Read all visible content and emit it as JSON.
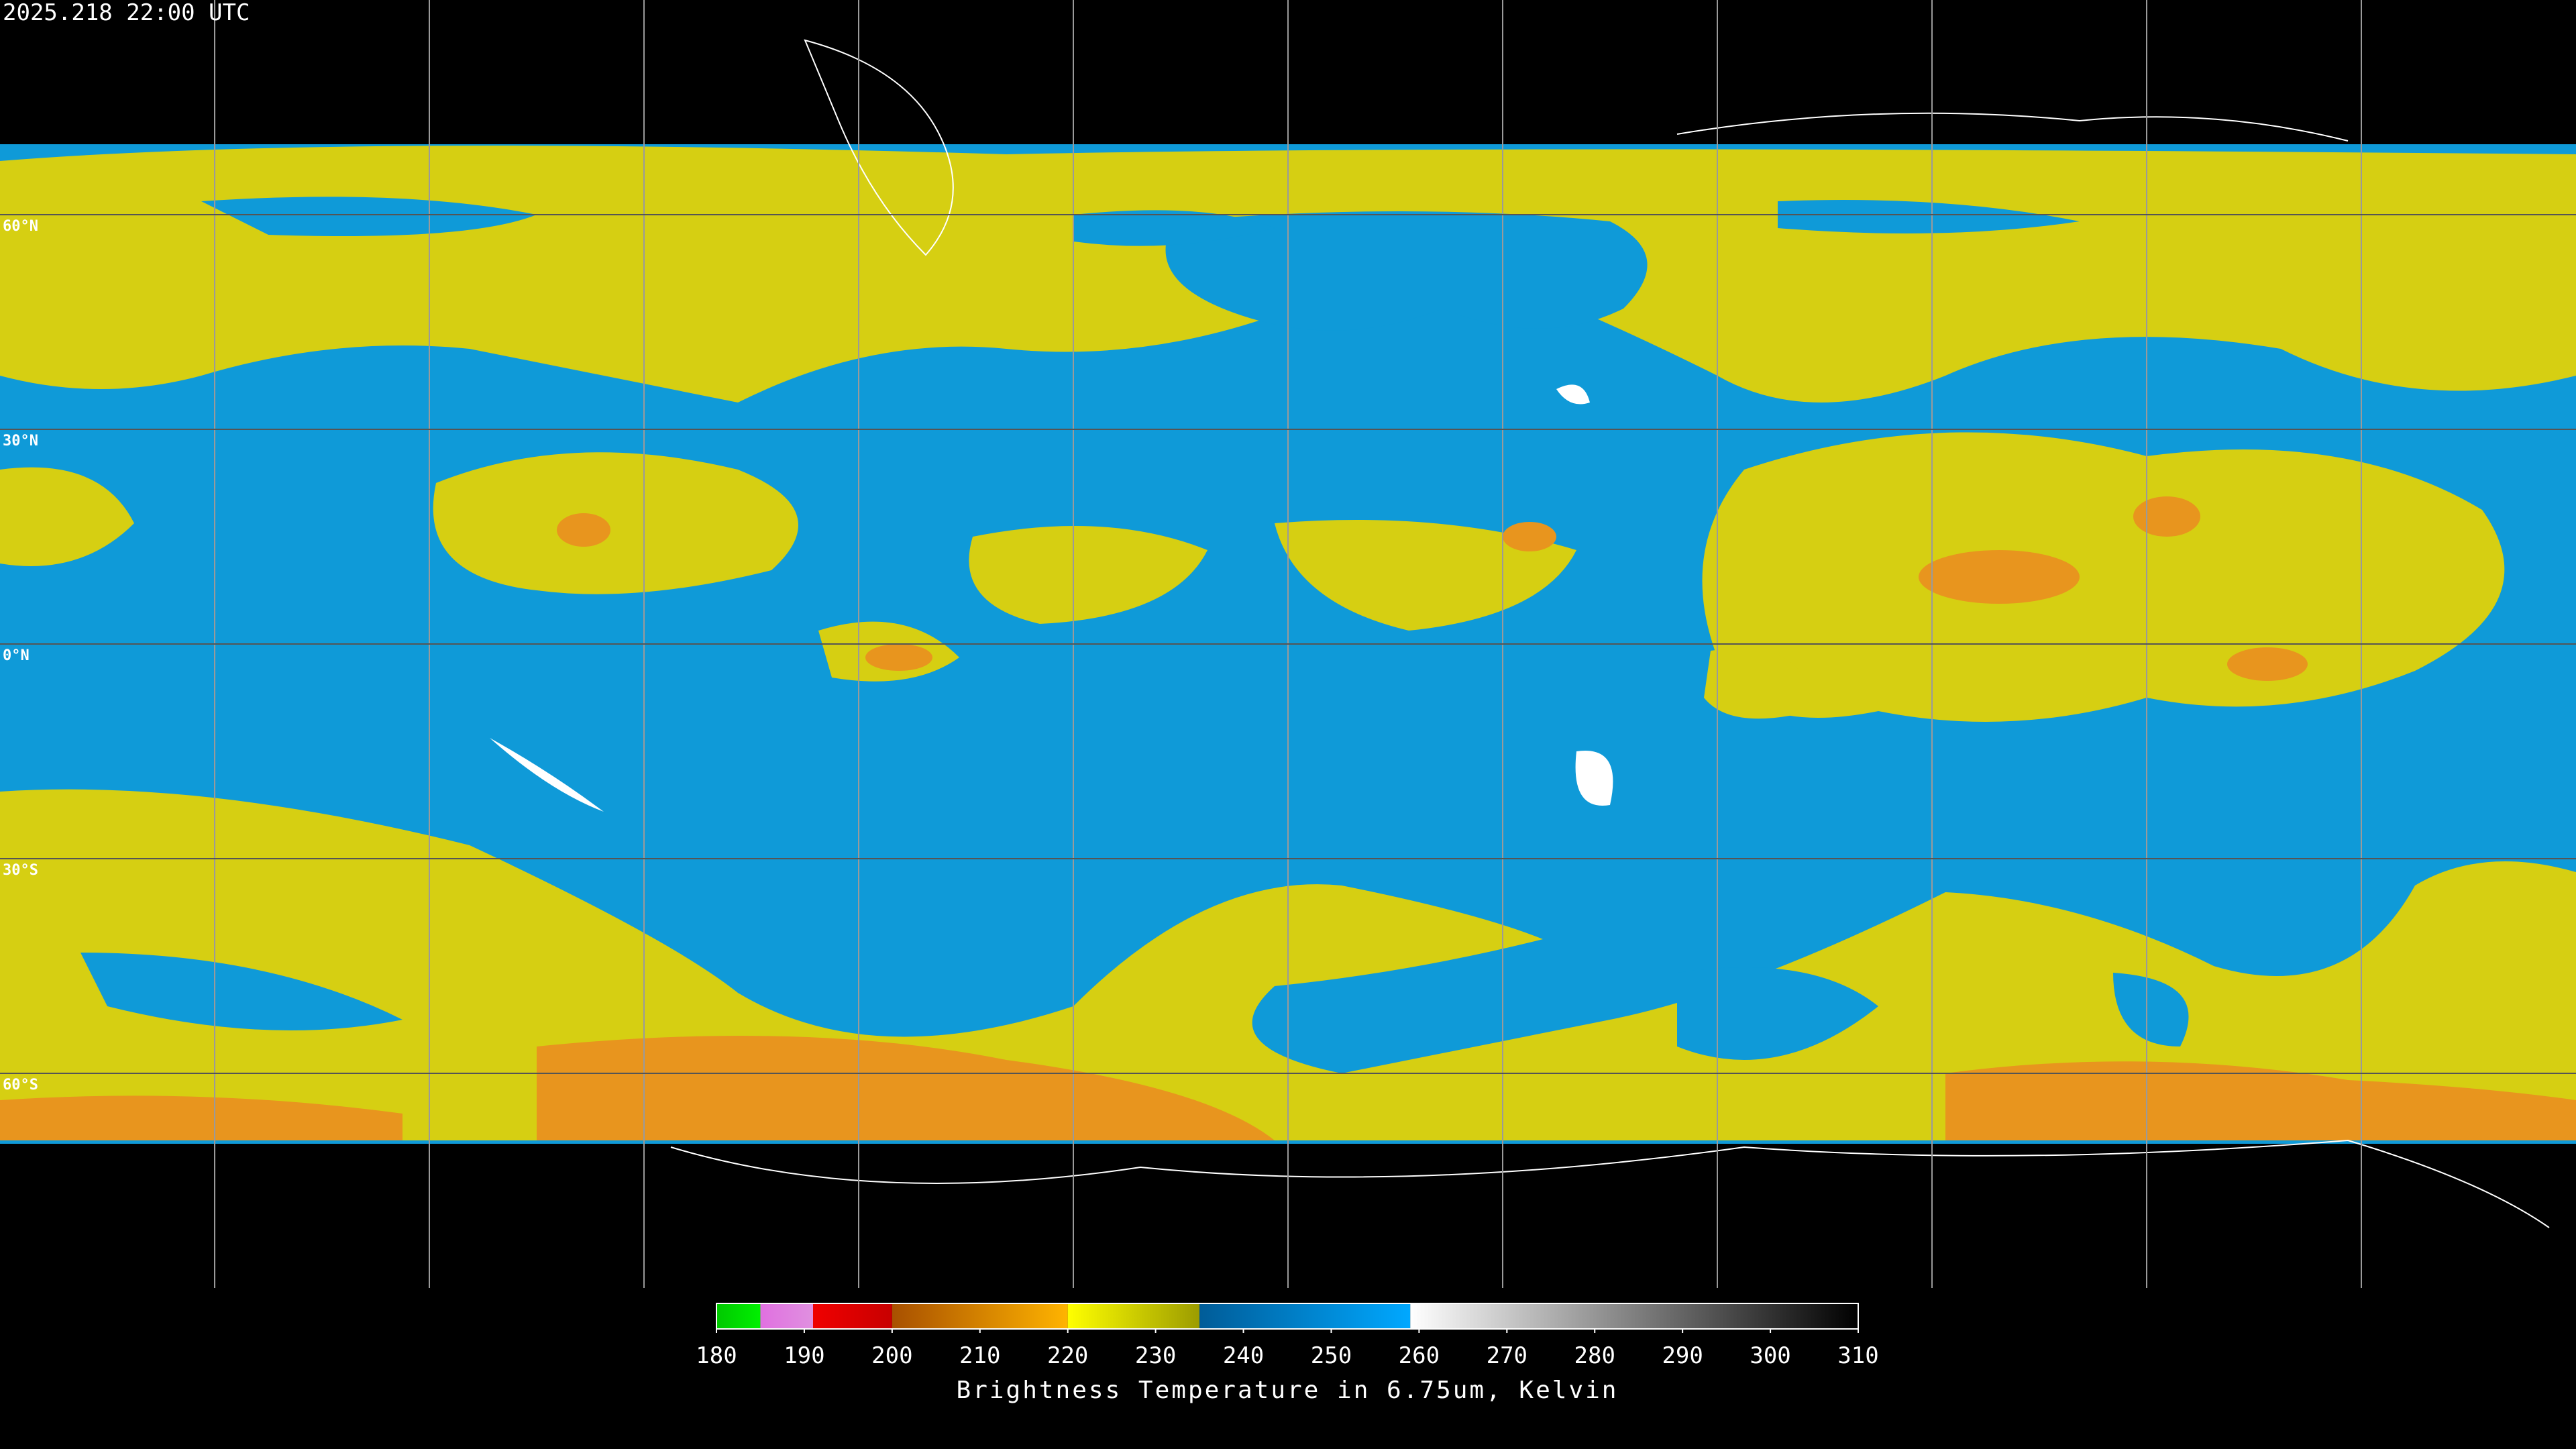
{
  "header": {
    "title": "2025.218 22:00 UTC"
  },
  "map": {
    "lat_lines": [
      {
        "value": 60,
        "label": "60°N"
      },
      {
        "value": 30,
        "label": "30°N"
      },
      {
        "value": 0,
        "label": "0°N"
      },
      {
        "value": -30,
        "label": "30°S"
      },
      {
        "value": -60,
        "label": "60°S"
      }
    ]
  },
  "colorbar": {
    "range": [
      180,
      310
    ],
    "ticks": [
      180,
      190,
      200,
      210,
      220,
      230,
      240,
      250,
      260,
      270,
      280,
      290,
      300,
      310
    ],
    "segments": [
      {
        "from": 180,
        "to": 185,
        "colors": [
          "#00c800",
          "#00f000"
        ]
      },
      {
        "from": 185,
        "to": 191,
        "colors": [
          "#e070e0",
          "#e090e0"
        ]
      },
      {
        "from": 191,
        "to": 200,
        "colors": [
          "#f00000",
          "#c80000"
        ]
      },
      {
        "from": 200,
        "to": 220,
        "colors": [
          "#a85000",
          "#ffb400"
        ]
      },
      {
        "from": 220,
        "to": 235,
        "colors": [
          "#ffff00",
          "#9c9c00"
        ]
      },
      {
        "from": 235,
        "to": 259,
        "colors": [
          "#005c98",
          "#00a8ff"
        ]
      },
      {
        "from": 259,
        "to": 310,
        "colors": [
          "#ffffff",
          "#000000"
        ]
      }
    ],
    "label": "Brightness Temperature in 6.75um, Kelvin"
  }
}
